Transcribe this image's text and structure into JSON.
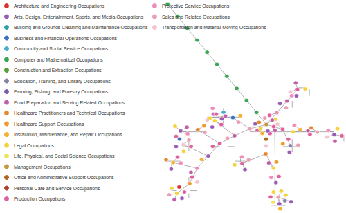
{
  "chart_data": {
    "type": "graph",
    "legend": "top-left",
    "categories": [
      {
        "name": "Architecture and Engineering Occupations",
        "color": "#d9312b"
      },
      {
        "name": "Arts, Design, Entertainment, Sports, and Media Occupations",
        "color": "#9a5bb5"
      },
      {
        "name": "Building and Grounds Cleaning and Maintenance Occupations",
        "color": "#2f9fa8"
      },
      {
        "name": "Business and Financial Operations Occupations",
        "color": "#3d6fc0"
      },
      {
        "name": "Community and Social Service Occupations",
        "color": "#4aaecb"
      },
      {
        "name": "Computer and Mathematical Occupations",
        "color": "#3aa655"
      },
      {
        "name": "Construction and Extraction Occupations",
        "color": "#5a9e3a"
      },
      {
        "name": "Education, Training, and Library Occupations",
        "color": "#8a7fa8"
      },
      {
        "name": "Farming, Fishing, and Forestry Occupations",
        "color": "#7b5ea7"
      },
      {
        "name": "Food Preparation and Serving Related Occupations",
        "color": "#c05fa8"
      },
      {
        "name": "Healthcare Practitioners and Technical Occupations",
        "color": "#e8842c"
      },
      {
        "name": "Healthcare Support Occupations",
        "color": "#f09a2b"
      },
      {
        "name": "Installation, Maintenance, and Repair Occupations",
        "color": "#f2b134"
      },
      {
        "name": "Legal Occupations",
        "color": "#f5d33b"
      },
      {
        "name": "Life, Physical, and Social Science Occupations",
        "color": "#eee45a"
      },
      {
        "name": "Management Occupations",
        "color": "#c8963e"
      },
      {
        "name": "Office and Administrative Support Occupations",
        "color": "#b5651d"
      },
      {
        "name": "Personal Care and Service Occupations",
        "color": "#a8432f"
      },
      {
        "name": "Production Occupations",
        "color": "#e0609e"
      },
      {
        "name": "Protective Service Occupations",
        "color": "#f08cbc"
      },
      {
        "name": "Sales and Related Occupations",
        "color": "#e8a0b4"
      },
      {
        "name": "Transportation and Material Moving Occupations",
        "color": "#f1c4d0"
      }
    ],
    "tree": {
      "category": 15,
      "children": [
        {
          "category": 5,
          "children": [
            {
              "category": 5,
              "children": [
                {
                  "category": 5,
                  "children": [
                    {
                      "category": 5,
                      "children": [
                        {
                          "category": 5,
                          "children": [
                            {
                              "category": 5,
                              "children": [
                                {
                                  "category": 5,
                                  "children": [
                                    {
                                      "category": 5,
                                      "children": [
                                        {
                                          "category": 5,
                                          "children": [
                                            {
                                              "category": 5,
                                              "children": []
                                            }
                                          ]
                                        }
                                      ]
                                    }
                                  ]
                                }
                              ]
                            }
                          ]
                        }
                      ]
                    }
                  ]
                }
              ]
            }
          ]
        },
        {
          "category": 19,
          "children": [
            {
              "category": 9,
              "children": [
                {
                  "category": 18,
                  "children": [
                    21,
                    9,
                    13,
                    1
                  ]
                },
                1,
                19,
                20
              ]
            },
            18,
            13
          ]
        },
        {
          "category": 18,
          "children": [
            {
              "category": 12,
              "children": [
                {
                  "category": 20,
                  "children": [
                    {
                      "category": 1,
                      "children": [
                        19,
                        13,
                        18,
                        9,
                        21
                      ]
                    },
                    10,
                    18
                  ]
                },
                19,
                9,
                13
              ]
            },
            {
              "category": 7,
              "children": [
                18,
                20,
                1,
                11
              ]
            },
            21,
            9
          ]
        },
        {
          "category": 16,
          "children": [
            {
              "category": 10,
              "children": [
                {
                  "category": 13,
                  "children": [
                    {
                      "category": 1,
                      "children": [
                        {
                          "category": 20,
                          "children": [
                            13,
                            13,
                            7,
                            1,
                            14,
                            18,
                            13,
                            12,
                            1
                          ]
                        },
                        18,
                        19
                      ]
                    },
                    11,
                    9
                  ]
                },
                {
                  "category": 18,
                  "children": [
                    20,
                    1,
                    13,
                    19
                  ]
                }
              ]
            },
            18,
            21,
            12
          ]
        },
        {
          "category": 20,
          "children": [
            {
              "category": 9,
              "children": [
                {
                  "category": 18,
                  "children": [
                    {
                      "category": 1,
                      "children": [
                        {
                          "category": 19,
                          "children": [
                            {
                              "category": 11,
                              "children": [
                                {
                                  "category": 13,
                                  "children": [
                                    18,
                                    1,
                                    9,
                                    20,
                                    13,
                                    0
                                  ]
                                },
                                21,
                                18
                              ]
                            },
                            {
                              "category": 12,
                              "children": [
                                19,
                                1,
                                10,
                                18
                              ]
                            },
                            9
                          ]
                        },
                        {
                          "category": 21,
                          "children": [
                            18,
                            13,
                            1,
                            3,
                            20
                          ]
                        },
                        12
                      ]
                    },
                    {
                      "category": 10,
                      "children": [
                        {
                          "category": 1,
                          "children": [
                            19,
                            18,
                            13,
                            9
                          ]
                        },
                        20,
                        11
                      ]
                    },
                    18
                  ]
                },
                {
                  "category": 13,
                  "children": [
                    18,
                    1,
                    21,
                    9,
                    16
                  ]
                },
                20
              ]
            },
            {
              "category": 3,
              "children": [
                {
                  "category": 18,
                  "children": [
                    1,
                    13,
                    19,
                    4
                  ]
                },
                20,
                9,
                12
              ]
            },
            18,
            1
          ]
        },
        18,
        1,
        13,
        10,
        20,
        9
      ]
    }
  }
}
